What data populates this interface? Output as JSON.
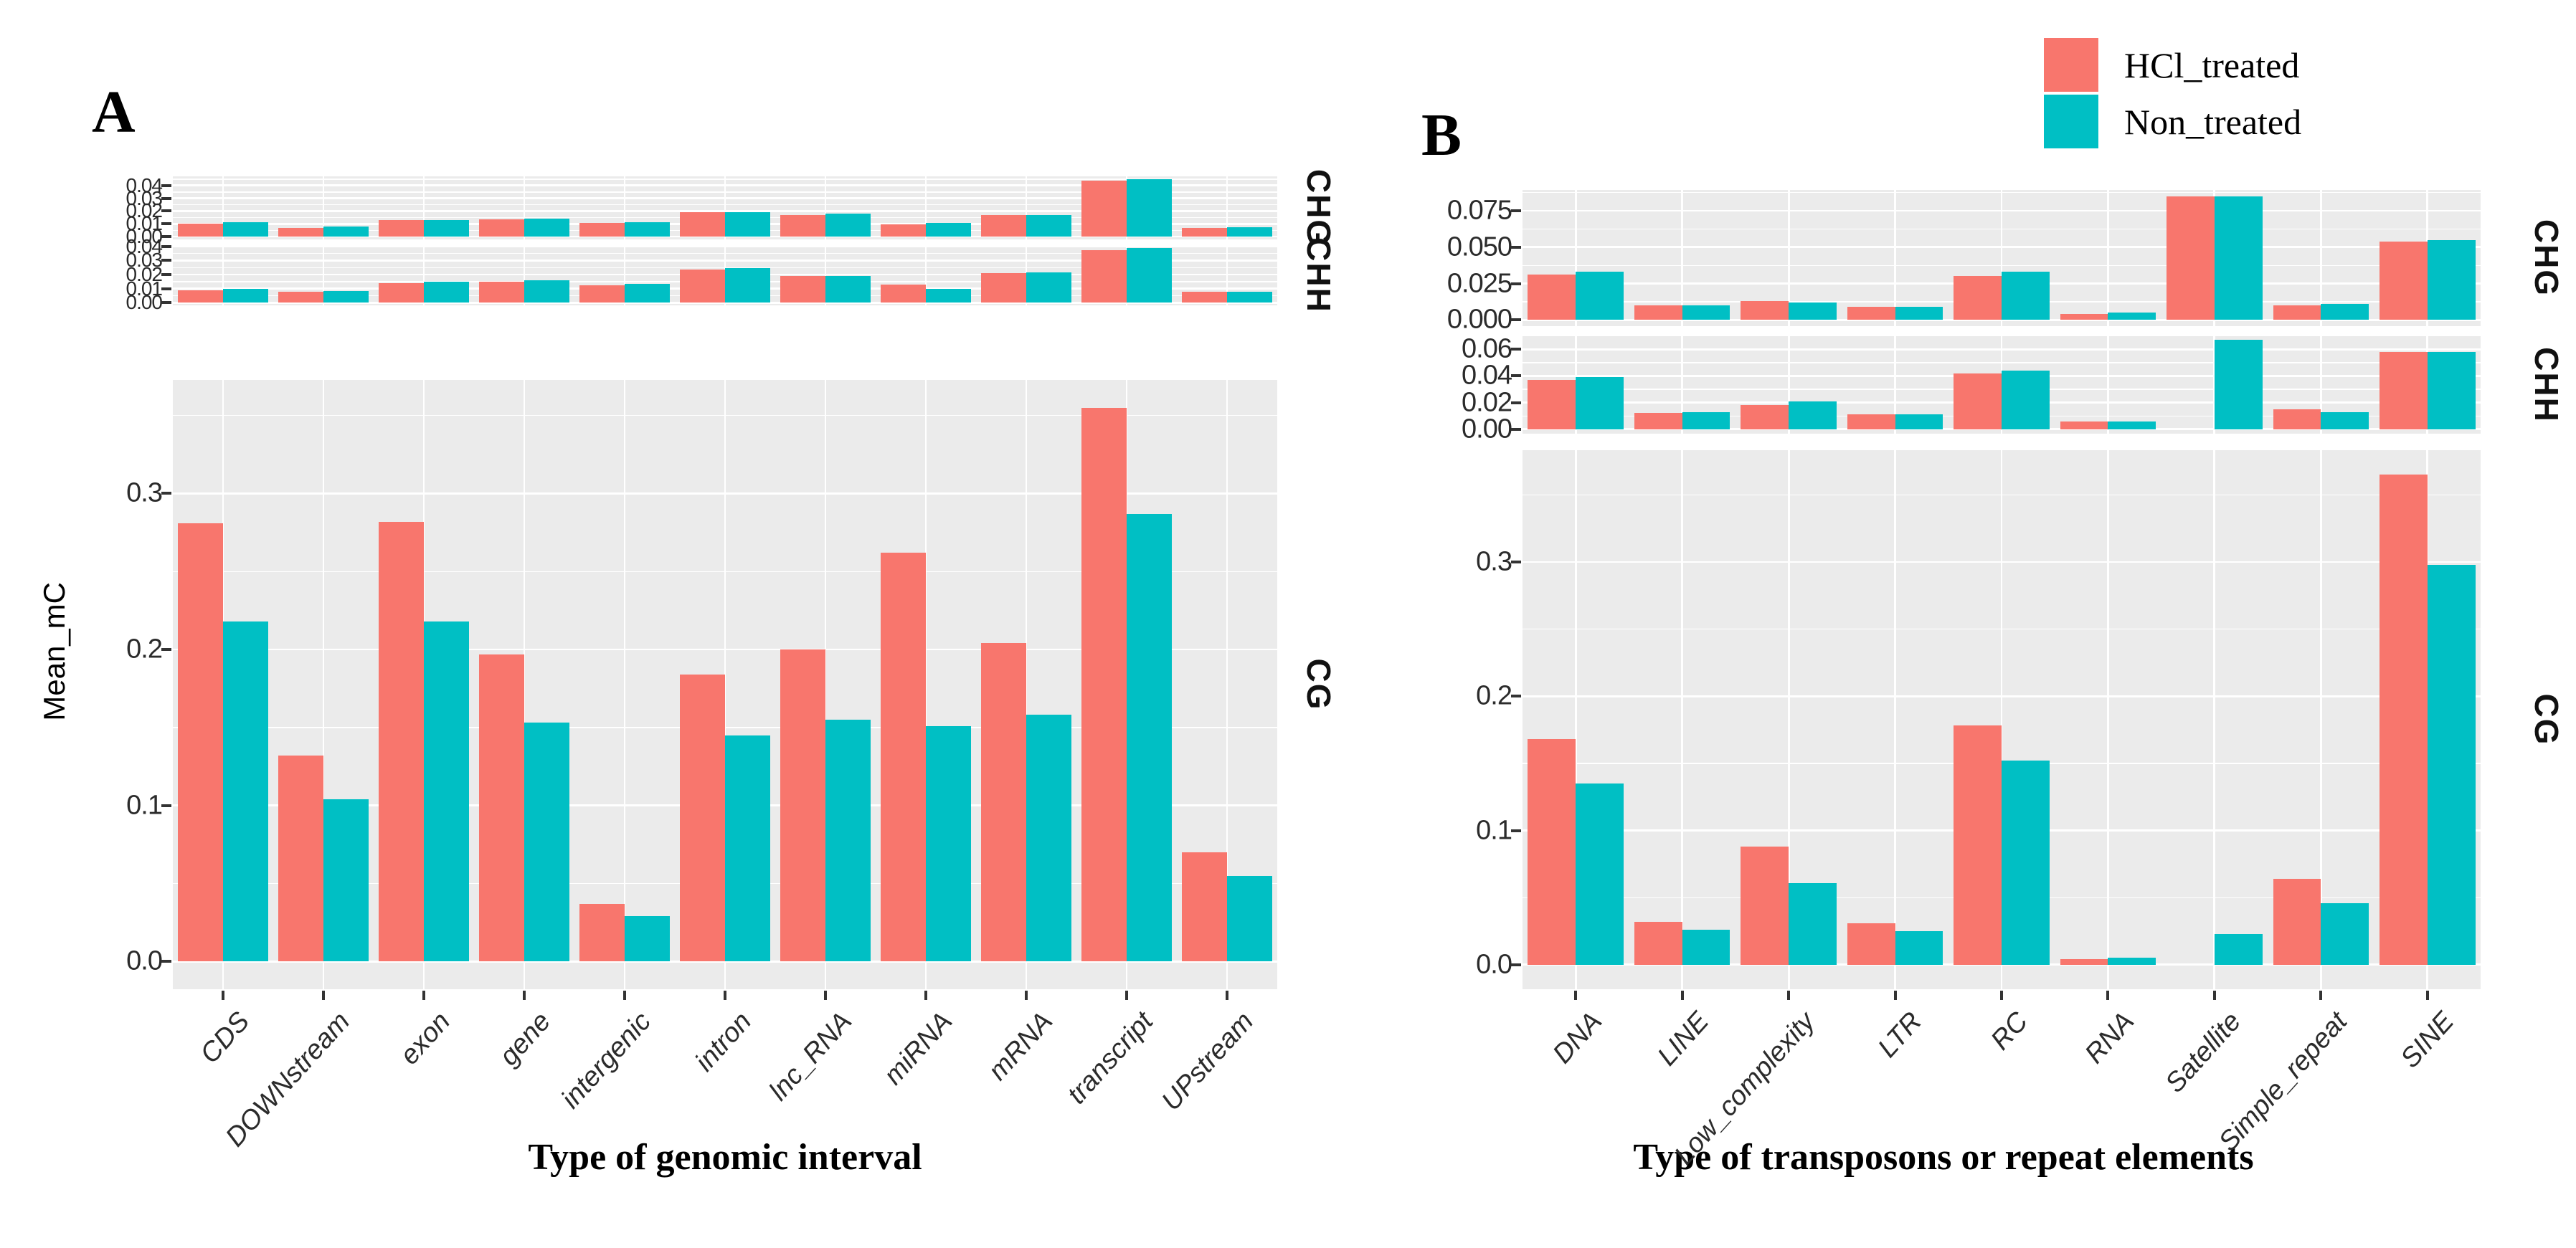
{
  "panels": [
    {
      "label": "A"
    },
    {
      "label": "B"
    }
  ],
  "legend": {
    "items": [
      {
        "label": "HCl_treated",
        "color": "#F8766D"
      },
      {
        "label": "Non_treated",
        "color": "#00BFC4"
      }
    ]
  },
  "colors": {
    "hcl_treated": "#F8766D",
    "non_treated": "#00BFC4",
    "panel_background": "#EBEBEB",
    "gridline": "#ffffff"
  },
  "chart_data": [
    {
      "type": "bar",
      "panel": "A",
      "title": "",
      "xlabel": "Type of genomic interval",
      "ylabel": "Mean_mC",
      "legend_position": "top-right",
      "grid": true,
      "categories": [
        "CDS",
        "DOWNstream",
        "exon",
        "gene",
        "intergenic",
        "intron",
        "lnc_RNA",
        "miRNA",
        "mRNA",
        "transcript",
        "UPstream"
      ],
      "facets": [
        {
          "name": "CHG",
          "ylim": [
            0,
            0.045
          ],
          "ticks": [
            0,
            0.01,
            0.02,
            0.03,
            0.04
          ],
          "tick_labels": [
            "0.00",
            "0.01",
            "0.02",
            "0.03",
            "0.04"
          ],
          "series": [
            {
              "name": "HCl_treated",
              "values": [
                0.01,
                0.007,
                0.013,
                0.0135,
                0.0105,
                0.019,
                0.017,
                0.0095,
                0.017,
                0.044,
                0.007
              ]
            },
            {
              "name": "Non_treated",
              "values": [
                0.011,
                0.008,
                0.013,
                0.014,
                0.0115,
                0.019,
                0.018,
                0.0105,
                0.017,
                0.045,
                0.0075
              ]
            }
          ]
        },
        {
          "name": "CHH",
          "ylim": [
            0,
            0.039
          ],
          "ticks": [
            0,
            0.01,
            0.02,
            0.03,
            0.04
          ],
          "tick_labels": [
            "0.00",
            "0.01",
            "0.02",
            "0.03",
            "0.04"
          ],
          "series": [
            {
              "name": "HCl_treated",
              "values": [
                0.009,
                0.008,
                0.014,
                0.015,
                0.0125,
                0.0235,
                0.019,
                0.013,
                0.021,
                0.0375,
                0.008
              ]
            },
            {
              "name": "Non_treated",
              "values": [
                0.01,
                0.0085,
                0.015,
                0.016,
                0.0135,
                0.0245,
                0.019,
                0.01,
                0.0215,
                0.039,
                0.008
              ]
            }
          ]
        },
        {
          "name": "CG",
          "ylim": [
            0,
            0.355
          ],
          "ticks": [
            0,
            0.1,
            0.2,
            0.3
          ],
          "tick_labels": [
            "0.0",
            "0.1",
            "0.2",
            "0.3"
          ],
          "series": [
            {
              "name": "HCl_treated",
              "values": [
                0.281,
                0.132,
                0.282,
                0.197,
                0.037,
                0.184,
                0.2,
                0.262,
                0.204,
                0.355,
                0.07
              ]
            },
            {
              "name": "Non_treated",
              "values": [
                0.218,
                0.104,
                0.218,
                0.153,
                0.029,
                0.145,
                0.155,
                0.151,
                0.158,
                0.287,
                0.055
              ]
            }
          ]
        }
      ]
    },
    {
      "type": "bar",
      "panel": "B",
      "title": "",
      "xlabel": "Type of transposons or repeat elements",
      "ylabel": "",
      "legend_position": "top-right",
      "grid": true,
      "categories": [
        "DNA",
        "LINE",
        "Low_complexity",
        "LTR",
        "RC",
        "RNA",
        "Satellite",
        "Simple_repeat",
        "SINE"
      ],
      "facets": [
        {
          "name": "CHG",
          "ylim": [
            0,
            0.085
          ],
          "ticks": [
            0,
            0.025,
            0.05,
            0.075
          ],
          "tick_labels": [
            "0.000",
            "0.025",
            "0.050",
            "0.075"
          ],
          "series": [
            {
              "name": "HCl_treated",
              "values": [
                0.031,
                0.01,
                0.013,
                0.009,
                0.03,
                0.004,
                0.085,
                0.01,
                0.054
              ]
            },
            {
              "name": "Non_treated",
              "values": [
                0.033,
                0.01,
                0.012,
                0.009,
                0.033,
                0.005,
                0.085,
                0.011,
                0.055
              ]
            }
          ]
        },
        {
          "name": "CHH",
          "ylim": [
            0,
            0.067
          ],
          "ticks": [
            0,
            0.02,
            0.04,
            0.06
          ],
          "tick_labels": [
            "0.00",
            "0.02",
            "0.04",
            "0.06"
          ],
          "series": [
            {
              "name": "HCl_treated",
              "values": [
                0.037,
                0.012,
                0.018,
                0.011,
                0.042,
                0.006,
                0,
                0.015,
                0.058
              ]
            },
            {
              "name": "Non_treated",
              "values": [
                0.039,
                0.013,
                0.021,
                0.011,
                0.044,
                0.006,
                0.067,
                0.013,
                0.058
              ]
            }
          ]
        },
        {
          "name": "CG",
          "ylim": [
            0,
            0.365
          ],
          "ticks": [
            0,
            0.1,
            0.2,
            0.3
          ],
          "tick_labels": [
            "0.0",
            "0.1",
            "0.2",
            "0.3"
          ],
          "series": [
            {
              "name": "HCl_treated",
              "values": [
                0.168,
                0.032,
                0.088,
                0.031,
                0.178,
                0.004,
                0,
                0.064,
                0.365
              ]
            },
            {
              "name": "Non_treated",
              "values": [
                0.135,
                0.026,
                0.061,
                0.025,
                0.152,
                0.005,
                0.023,
                0.046,
                0.298
              ]
            }
          ]
        }
      ]
    }
  ]
}
